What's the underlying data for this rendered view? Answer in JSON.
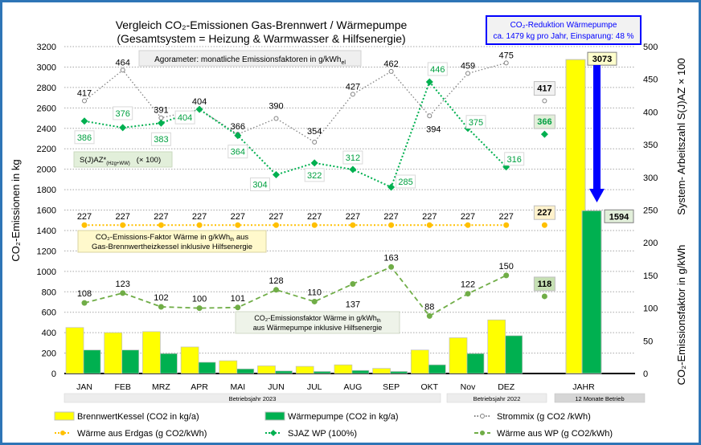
{
  "chart_data": {
    "type": "bar",
    "title_line1": "Vergleich CO₂-Emissionen   Gas-Brennwert / Wärmepumpe",
    "title_line2": "(Gesamtsystem = Heizung & Warmwasser & Hilfsenergie)",
    "ylabel_left": "CO₂-Emissionen in kg",
    "ylabel_right_top": "System- Arbeitszahl  S(J)AZ × 100",
    "ylabel_right_bottom": "CO₂-Emissionsfaktor in g/kWh",
    "ylim_left": [
      0,
      3200
    ],
    "ylim_right": [
      0,
      500
    ],
    "left_ticks": [
      "0",
      "200",
      "400",
      "600",
      "800",
      "1000",
      "1200",
      "1400",
      "1600",
      "1800",
      "2000",
      "2200",
      "2400",
      "2600",
      "2800",
      "3000",
      "3200"
    ],
    "right_ticks": [
      "0",
      "50",
      "100",
      "150",
      "200",
      "250",
      "300",
      "350",
      "400",
      "450",
      "500"
    ],
    "grid": true,
    "categories": [
      "JAN",
      "FEB",
      "MRZ",
      "APR",
      "MAI",
      "JUN",
      "JUL",
      "AUG",
      "SEP",
      "OKT",
      "Nov",
      "DEZ"
    ],
    "year_category": "JAHR",
    "groups": [
      {
        "label": "Betriebsjahr  2023"
      },
      {
        "label": "Betriebsjahr 2022"
      },
      {
        "label": "12 Monate  Betrieb"
      }
    ],
    "bar_series": [
      {
        "name": "BrennwertKessel (CO2 in kg/a)",
        "color": "#FFFF00",
        "values": [
          450,
          400,
          410,
          260,
          125,
          75,
          70,
          85,
          50,
          230,
          350,
          525
        ],
        "year_total": 3073
      },
      {
        "name": "Wärmepumpe (CO2 in kg/a)",
        "color": "#00B050",
        "values": [
          230,
          230,
          195,
          110,
          45,
          25,
          20,
          30,
          20,
          85,
          195,
          370
        ],
        "year_total": 1594
      }
    ],
    "line_series": [
      {
        "name": "Strommix  (g CO2 /kWh)",
        "color": "#808080",
        "axis": "right",
        "values": [
          417,
          464,
          391,
          404,
          366,
          390,
          354,
          427,
          462,
          394,
          459,
          475
        ],
        "average": 417
      },
      {
        "name": "Wärme aus Erdgas (g CO2/kWh)",
        "color": "#FFC000",
        "axis": "right",
        "values": [
          227,
          227,
          227,
          227,
          227,
          227,
          227,
          227,
          227,
          227,
          227,
          227
        ],
        "average": 227
      },
      {
        "name": "SJAZ WP (100%)",
        "color": "#00B050",
        "axis": "right",
        "values": [
          386,
          376,
          383,
          404,
          364,
          304,
          322,
          312,
          285,
          446,
          375,
          316
        ],
        "average": 366
      },
      {
        "name": "Wärme aus WP  (g CO2/kWh)",
        "color": "#70AD47",
        "axis": "right",
        "values": [
          108,
          123,
          102,
          100,
          101,
          128,
          110,
          137,
          163,
          88,
          122,
          150
        ],
        "average": 118
      }
    ],
    "annotations": {
      "agorameter": {
        "text": "Agorameter: monatliche Emissionsfaktoren in g/kWh",
        "sub": "el"
      },
      "reduction_line1": "CO₂-Reduktion  Wärmepumpe",
      "reduction_line2": "ca. 1479 kg pro Jahr, Einsparung: 48 %",
      "sjaz_label": "S(J)AZ*",
      "sjaz_sub": "(Hzg+WW)",
      "sjaz_scale": "(× 100)",
      "gas_line1": "CO₂-Emissions-Faktor Wärme in g/kWh",
      "gas_line1_sub": "th",
      "gas_line1_end": " aus",
      "gas_line2": "Gas-Brennwertheizkessel inklusive Hilfsenergie",
      "wp_line1": "CO₂-Emissionsfaktor Wärme in g/kWh",
      "wp_line1_sub": "th",
      "wp_line2": "aus Wärmepumpe inklusive Hilfsenergie"
    },
    "colors": {
      "frame": "#2E75B6",
      "reduction_arrow": "#0000FF",
      "grid": "#A6A6A6"
    }
  }
}
